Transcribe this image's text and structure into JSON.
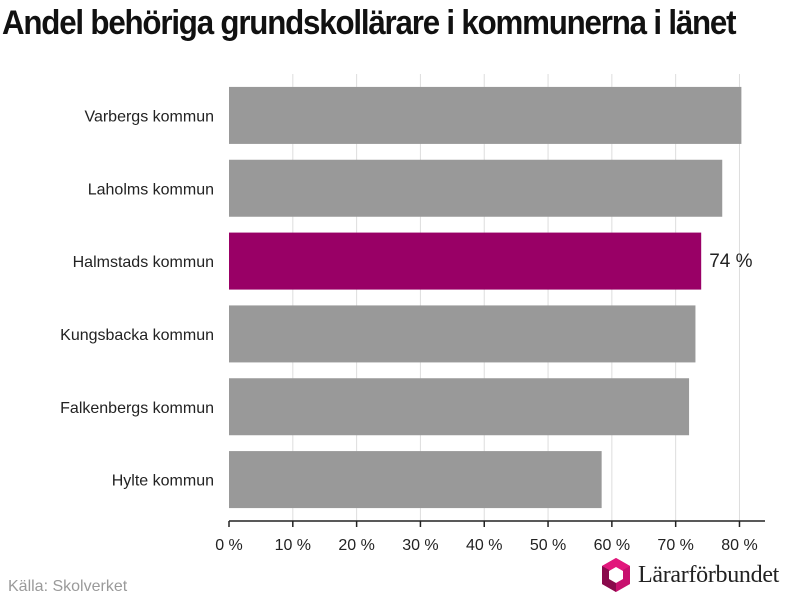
{
  "title": "Andel behöriga grundskollärare i kommunerna i länet",
  "source": "Källa: Skolverket",
  "logo_text": "Lärarförbundet",
  "colors": {
    "bar": "#999999",
    "highlight": "#990066",
    "grid": "#dddddd",
    "axis": "#222222"
  },
  "chart_data": {
    "type": "bar",
    "orientation": "horizontal",
    "categories": [
      "Varbergs kommun",
      "Laholms kommun",
      "Halmstads kommun",
      "Kungsbacka kommun",
      "Falkenbergs kommun",
      "Hylte kommun"
    ],
    "values": [
      80.3,
      77.3,
      74,
      73.1,
      72.1,
      58.4
    ],
    "highlight_index": 2,
    "data_labels": [
      {
        "index": 2,
        "text": "74 %"
      }
    ],
    "xlim": [
      0,
      84
    ],
    "xticks": [
      0,
      10,
      20,
      30,
      40,
      50,
      60,
      70,
      80
    ],
    "xtick_labels": [
      "0 %",
      "10 %",
      "20 %",
      "30 %",
      "40 %",
      "50 %",
      "60 %",
      "70 %",
      "80 %"
    ],
    "grid": true,
    "xlabel": "",
    "ylabel": ""
  }
}
